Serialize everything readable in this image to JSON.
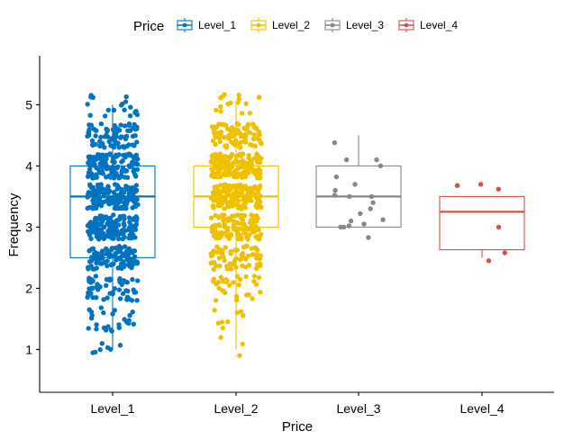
{
  "chart_data": {
    "type": "box",
    "xlabel": "Price",
    "ylabel": "Frequency",
    "ylim": [
      0.3,
      5.8
    ],
    "yticks": [
      1,
      2,
      3,
      4,
      5
    ],
    "categories": [
      "Level_1",
      "Level_2",
      "Level_3",
      "Level_4"
    ],
    "legend": {
      "title": "Price",
      "position": "top",
      "entries": [
        "Level_1",
        "Level_2",
        "Level_3",
        "Level_4"
      ]
    },
    "grid": false,
    "colors": {
      "Level_1": "#0073C2",
      "Level_2": "#EFC000",
      "Level_3": "#868686",
      "Level_4": "#CD534C"
    },
    "boxes": [
      {
        "category": "Level_1",
        "whisker_low": 1.0,
        "q1": 2.5,
        "median": 3.5,
        "q3": 4.0,
        "whisker_high": 5.0,
        "approx_points": 700
      },
      {
        "category": "Level_2",
        "whisker_low": 1.0,
        "q1": 3.0,
        "median": 3.5,
        "q3": 4.0,
        "whisker_high": 5.0,
        "approx_points": 600
      },
      {
        "category": "Level_3",
        "whisker_low": 3.0,
        "q1": 3.0,
        "median": 3.5,
        "q3": 4.0,
        "whisker_high": 4.5,
        "approx_points": 20
      },
      {
        "category": "Level_4",
        "whisker_low": 2.5,
        "q1": 2.63,
        "median": 3.25,
        "q3": 3.5,
        "whisker_high": 3.5,
        "approx_points": 6
      }
    ],
    "points": {
      "Level_3": [
        2.83,
        3.0,
        3.0,
        3.02,
        3.05,
        3.1,
        3.12,
        3.22,
        3.3,
        3.4,
        3.5,
        3.5,
        3.52,
        3.6,
        3.7,
        3.82,
        4.0,
        4.1,
        4.1,
        4.38
      ],
      "Level_4": [
        2.45,
        2.58,
        3.0,
        3.62,
        3.68,
        3.7
      ]
    }
  }
}
